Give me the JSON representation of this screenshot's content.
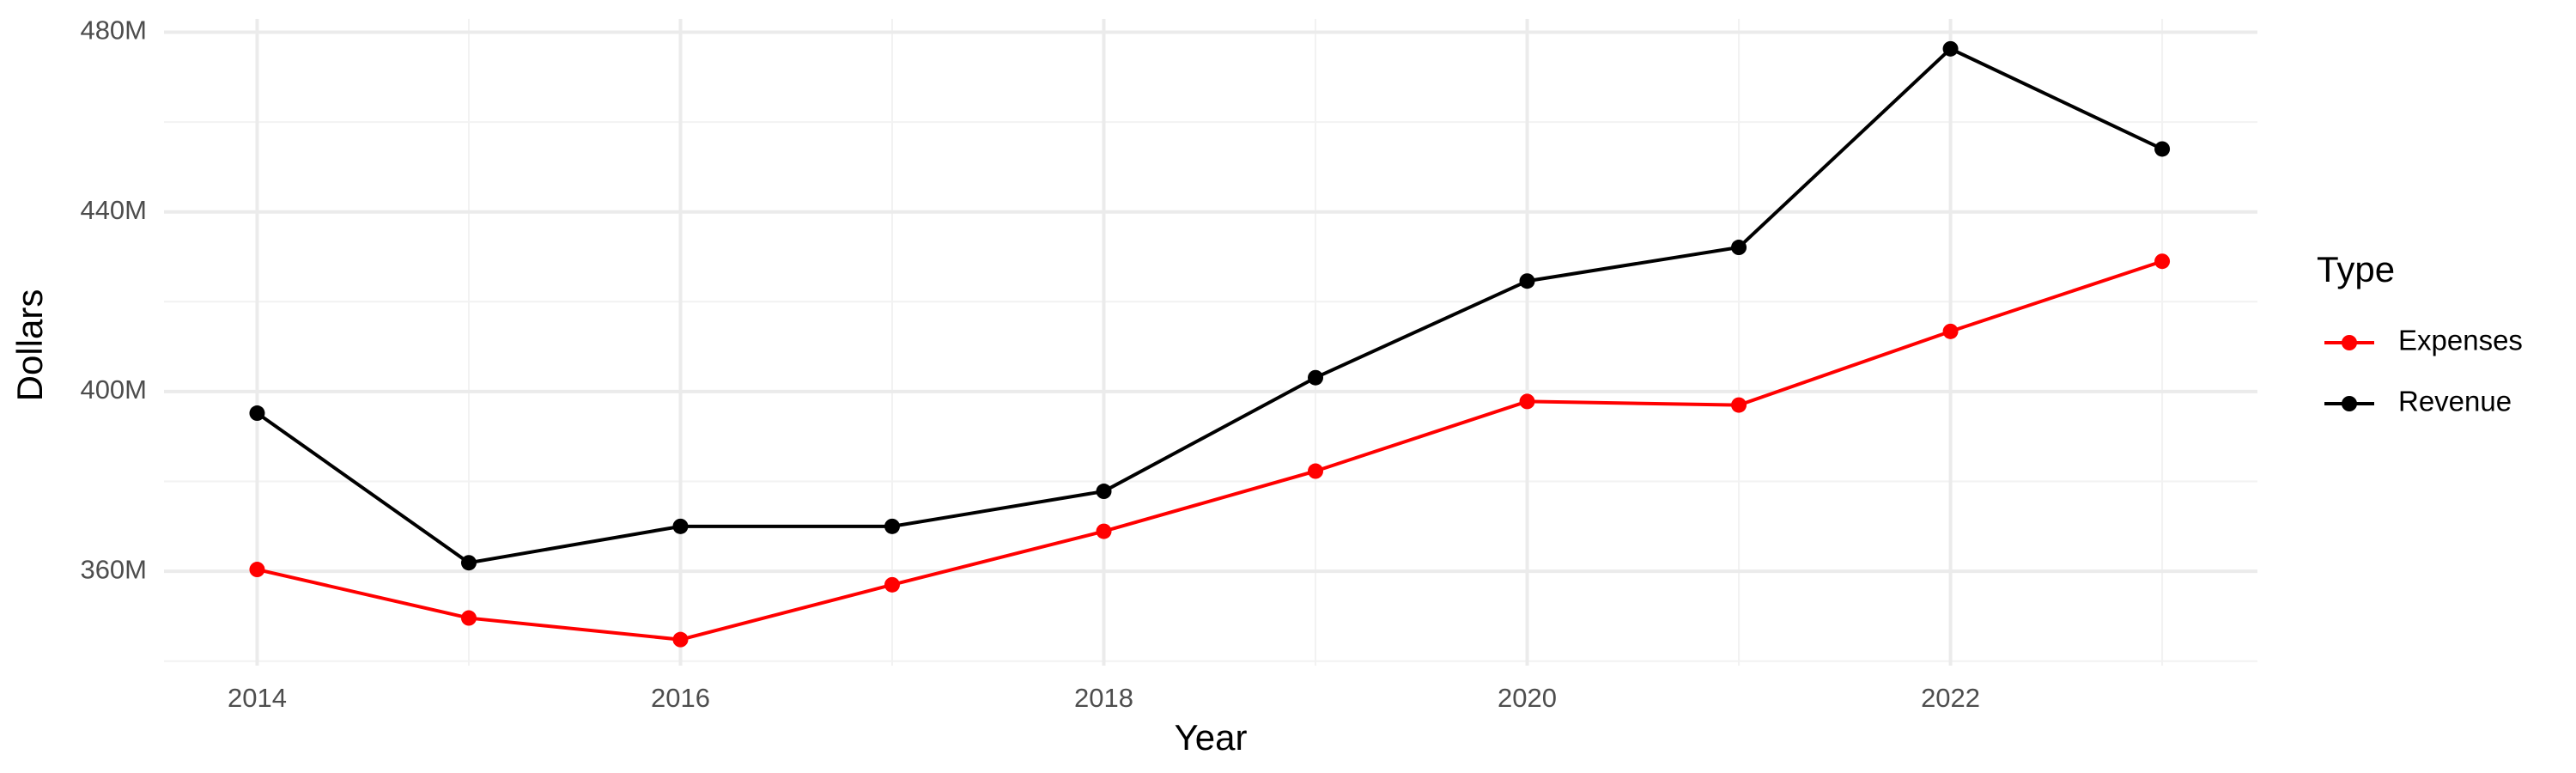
{
  "chart_data": {
    "type": "line",
    "x_label": "Year",
    "y_label": "Dollars",
    "legend_title": "Type",
    "x": [
      2014,
      2015,
      2016,
      2017,
      2018,
      2019,
      2020,
      2021,
      2022,
      2023
    ],
    "series": [
      {
        "name": "Expenses",
        "color": "#ff0000",
        "values": [
          360400000,
          349600000,
          344800000,
          357000000,
          368900000,
          382300000,
          397800000,
          397000000,
          413400000,
          429000000
        ]
      },
      {
        "name": "Revenue",
        "color": "#000000",
        "values": [
          395200000,
          361900000,
          370000000,
          370000000,
          377800000,
          403100000,
          424600000,
          432100000,
          476300000,
          454000000
        ]
      }
    ],
    "xlim": [
      2013.56,
      2023.45
    ],
    "xticks": [
      2014,
      2016,
      2018,
      2020,
      2022
    ],
    "x_minor_ticks": [
      2015,
      2017,
      2019,
      2021,
      2023
    ],
    "ylim": [
      339000000,
      482000000
    ],
    "yticks": [
      {
        "value": 360000000,
        "label": "360M"
      },
      {
        "value": 400000000,
        "label": "400M"
      },
      {
        "value": 440000000,
        "label": "440M"
      },
      {
        "value": 480000000,
        "label": "480M"
      }
    ],
    "y_minor_ticks": [
      340000000,
      380000000,
      420000000,
      460000000
    ],
    "grid": true,
    "legend_position": "right"
  }
}
